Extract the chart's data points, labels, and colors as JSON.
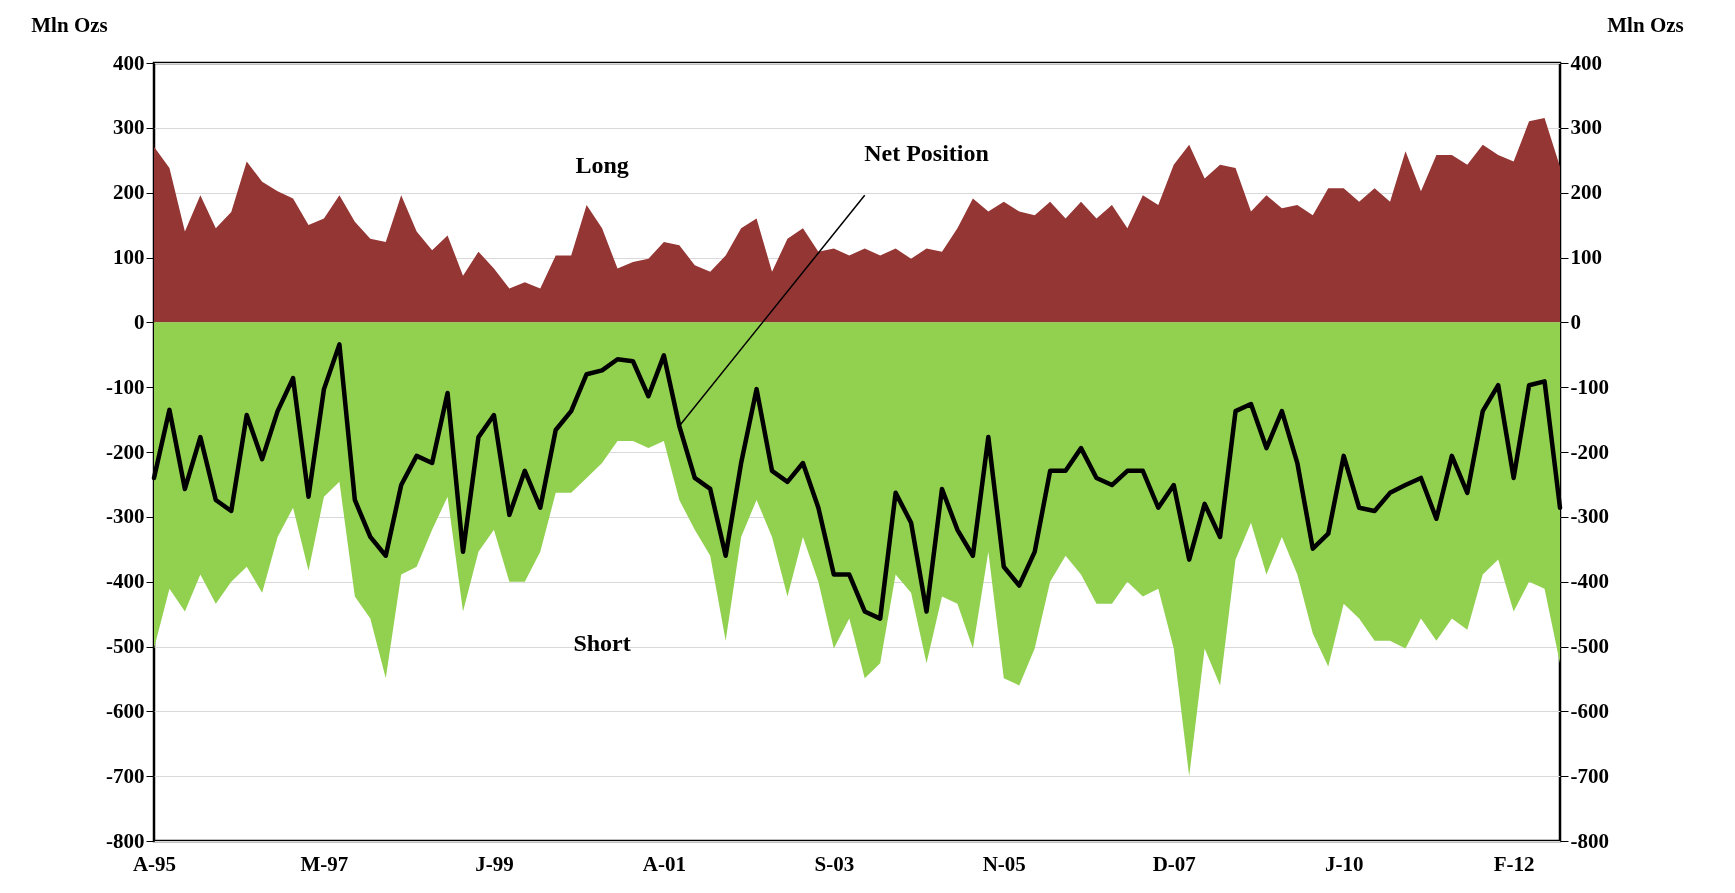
{
  "chart_data": {
    "type": "area",
    "ylabel": "Mln Ozs",
    "y2label": "Mln Ozs",
    "categories": [
      "A-95",
      null,
      null,
      null,
      null,
      null,
      null,
      null,
      null,
      null,
      null,
      "M-97",
      null,
      null,
      null,
      null,
      null,
      null,
      null,
      null,
      null,
      null,
      "J-99",
      null,
      null,
      null,
      null,
      null,
      null,
      null,
      null,
      null,
      null,
      "A-01",
      null,
      null,
      null,
      null,
      null,
      null,
      null,
      null,
      null,
      null,
      "S-03",
      null,
      null,
      null,
      null,
      null,
      null,
      null,
      null,
      null,
      null,
      "N-05",
      null,
      null,
      null,
      null,
      null,
      null,
      null,
      null,
      null,
      null,
      "D-07",
      null,
      null,
      null,
      null,
      null,
      null,
      null,
      null,
      null,
      null,
      "J-10",
      null,
      null,
      null,
      null,
      null,
      null,
      null,
      null,
      null,
      null,
      "F-12",
      null,
      null,
      null
    ],
    "series": [
      {
        "name": "Long",
        "color": "#943634",
        "values": [
          271,
          238,
          140,
          196,
          145,
          170,
          248,
          217,
          202,
          191,
          150,
          160,
          196,
          155,
          129,
          124,
          196,
          140,
          111,
          134,
          72,
          109,
          83,
          52,
          62,
          52,
          103,
          103,
          181,
          145,
          83,
          93,
          98,
          124,
          119,
          88,
          78,
          103,
          145,
          160,
          78,
          129,
          145,
          109,
          114,
          103,
          114,
          103,
          114,
          98,
          114,
          109,
          145,
          191,
          171,
          186,
          171,
          165,
          186,
          160,
          186,
          160,
          181,
          145,
          196,
          181,
          243,
          274,
          222,
          243,
          238,
          171,
          196,
          176,
          181,
          165,
          207,
          207,
          186,
          207,
          186,
          264,
          202,
          258,
          258,
          243,
          274,
          258,
          248,
          310,
          315,
          240
        ]
      },
      {
        "name": "Short",
        "color": "#92d050",
        "values": [
          -503,
          -411,
          -446,
          -389,
          -434,
          -400,
          -377,
          -417,
          -331,
          -286,
          -383,
          -269,
          -246,
          -423,
          -457,
          -549,
          -389,
          -377,
          -320,
          -269,
          -446,
          -354,
          -320,
          -400,
          -400,
          -354,
          -263,
          -263,
          -240,
          -217,
          -183,
          -183,
          -194,
          -183,
          -274,
          -320,
          -360,
          -491,
          -331,
          -274,
          -331,
          -423,
          -331,
          -400,
          -503,
          -457,
          -549,
          -526,
          -389,
          -417,
          -526,
          -423,
          -434,
          -503,
          -354,
          -549,
          -560,
          -503,
          -400,
          -360,
          -389,
          -434,
          -434,
          -400,
          -423,
          -411,
          -503,
          -700,
          -503,
          -560,
          -366,
          -309,
          -389,
          -331,
          -389,
          -480,
          -531,
          -434,
          -457,
          -491,
          -491,
          -503,
          -457,
          -491,
          -457,
          -474,
          -389,
          -366,
          -446,
          -400,
          -411,
          -526
        ]
      },
      {
        "name": "Net Position",
        "type": "line",
        "color": "#000000",
        "values": [
          -240,
          -135,
          -257,
          -177,
          -274,
          -291,
          -143,
          -211,
          -137,
          -86,
          -269,
          -103,
          -34,
          -274,
          -331,
          -360,
          -251,
          -206,
          -217,
          -109,
          -354,
          -177,
          -143,
          -297,
          -229,
          -286,
          -166,
          -137,
          -80,
          -74,
          -57,
          -60,
          -114,
          -51,
          -160,
          -240,
          -257,
          -360,
          -217,
          -103,
          -229,
          -246,
          -217,
          -286,
          -389,
          -389,
          -446,
          -457,
          -263,
          -309,
          -446,
          -257,
          -320,
          -360,
          -177,
          -377,
          -406,
          -354,
          -229,
          -229,
          -194,
          -240,
          -251,
          -229,
          -229,
          -286,
          -251,
          -366,
          -280,
          -331,
          -137,
          -126,
          -194,
          -137,
          -217,
          -349,
          -326,
          -206,
          -286,
          -291,
          -263,
          -251,
          -240,
          -303,
          -206,
          -263,
          -137,
          -97,
          -240,
          -97,
          -91,
          -286
        ]
      }
    ],
    "ylim": [
      -800,
      400
    ],
    "yticks": [
      -800,
      -700,
      -600,
      -500,
      -400,
      -300,
      -200,
      -100,
      0,
      100,
      200,
      300,
      400
    ],
    "y2lim": [
      -800,
      400
    ],
    "y2ticks": [
      -800,
      -700,
      -600,
      -500,
      -400,
      -300,
      -200,
      -100,
      0,
      100,
      200,
      300,
      400
    ],
    "grid": "y"
  }
}
